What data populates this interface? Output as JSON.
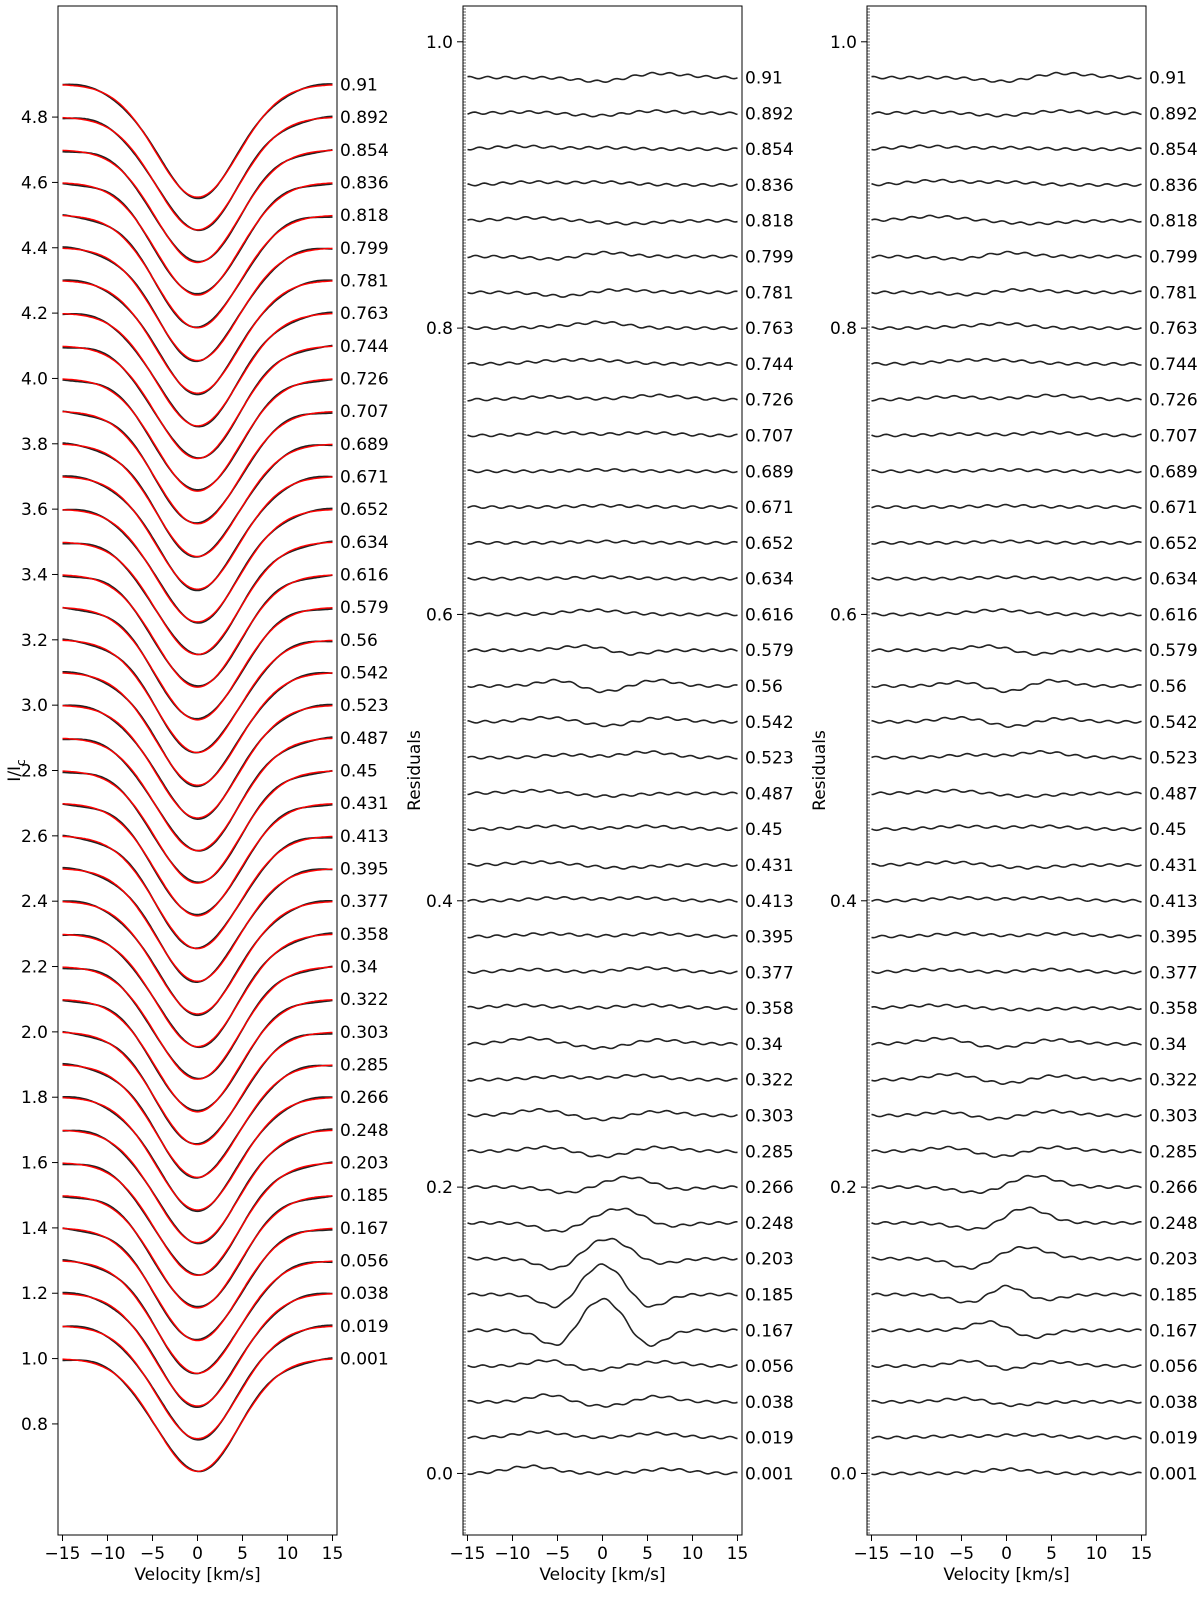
{
  "chart_data": [
    {
      "type": "line",
      "ylabel": "I/I",
      "ylabel_sub": "c",
      "xlabel": "Velocity [km/s]",
      "xlim": [
        -15.5,
        15.5
      ],
      "ylim": [
        0.46,
        5.14
      ],
      "xticks": [
        -15,
        -10,
        -5,
        0,
        5,
        10,
        15
      ],
      "xtick_labels": [
        "−15",
        "−10",
        "−5",
        "0",
        "5",
        "10",
        "15"
      ],
      "yticks": [
        0.8,
        1.0,
        1.2,
        1.4,
        1.6,
        1.8,
        2.0,
        2.2,
        2.4,
        2.6,
        2.8,
        3.0,
        3.2,
        3.4,
        3.6,
        3.8,
        4.0,
        4.2,
        4.4,
        4.6,
        4.8
      ],
      "ytick_labels": [
        "0.8",
        "1.0",
        "1.2",
        "1.4",
        "1.6",
        "1.8",
        "2.0",
        "2.2",
        "2.4",
        "2.6",
        "2.8",
        "3.0",
        "3.2",
        "3.4",
        "3.6",
        "3.8",
        "4.0",
        "4.2",
        "4.4",
        "4.6",
        "4.8"
      ],
      "offset_step": 0.1,
      "line_depth": 0.345,
      "line_sigma": 4.6,
      "series_colors": {
        "observed": "#222222",
        "model": "#ff0000"
      },
      "phase_labels": [
        "0.001",
        "0.019",
        "0.038",
        "0.056",
        "0.167",
        "0.185",
        "0.203",
        "0.248",
        "0.266",
        "0.285",
        "0.303",
        "0.322",
        "0.34",
        "0.358",
        "0.377",
        "0.395",
        "0.413",
        "0.431",
        "0.45",
        "0.487",
        "0.523",
        "0.542",
        "0.56",
        "0.579",
        "0.616",
        "0.634",
        "0.652",
        "0.671",
        "0.689",
        "0.707",
        "0.726",
        "0.744",
        "0.763",
        "0.781",
        "0.799",
        "0.818",
        "0.836",
        "0.854",
        "0.892",
        "0.91"
      ]
    },
    {
      "type": "line",
      "ylabel": "Residuals",
      "xlabel": "Velocity [km/s]",
      "xlim": [
        -15.5,
        15.5
      ],
      "ylim": [
        -0.043,
        1.025
      ],
      "xticks": [
        -15,
        -10,
        -5,
        0,
        5,
        10,
        15
      ],
      "xtick_labels": [
        "−15",
        "−10",
        "−5",
        "0",
        "5",
        "10",
        "15"
      ],
      "yticks": [
        0.0,
        0.2,
        0.4,
        0.6,
        0.8,
        1.0
      ],
      "ytick_labels": [
        "0.0",
        "0.2",
        "0.4",
        "0.6",
        "0.8",
        "1.0"
      ],
      "offset_step": 0.025,
      "series_colors": {
        "residual": "#222222"
      },
      "phase_labels": [
        "0.001",
        "0.019",
        "0.038",
        "0.056",
        "0.167",
        "0.185",
        "0.203",
        "0.248",
        "0.266",
        "0.285",
        "0.303",
        "0.322",
        "0.34",
        "0.358",
        "0.377",
        "0.395",
        "0.413",
        "0.431",
        "0.45",
        "0.487",
        "0.523",
        "0.542",
        "0.56",
        "0.579",
        "0.616",
        "0.634",
        "0.652",
        "0.671",
        "0.689",
        "0.707",
        "0.726",
        "0.744",
        "0.763",
        "0.781",
        "0.799",
        "0.818",
        "0.836",
        "0.854",
        "0.892",
        "0.91"
      ],
      "residual_features": [
        [
          [
            -8,
            0.005,
            2.5
          ],
          [
            7,
            0.003,
            2.5
          ]
        ],
        [
          [
            -7,
            0.004,
            2.5
          ],
          [
            6,
            0.003,
            2.5
          ]
        ],
        [
          [
            -6,
            0.005,
            2
          ],
          [
            0,
            -0.003,
            2.5
          ],
          [
            6,
            0.004,
            2
          ]
        ],
        [
          [
            -6,
            0.004,
            2
          ],
          [
            -1,
            -0.003,
            2
          ],
          [
            6.5,
            0.003,
            2.5
          ]
        ],
        [
          [
            -5,
            -0.012,
            1.8
          ],
          [
            0,
            0.022,
            2.3
          ],
          [
            5,
            -0.012,
            1.8
          ]
        ],
        [
          [
            -5,
            -0.01,
            1.8
          ],
          [
            0,
            0.021,
            2.3
          ],
          [
            5,
            -0.01,
            1.8
          ]
        ],
        [
          [
            -5,
            -0.008,
            2
          ],
          [
            0.5,
            0.014,
            2.5
          ],
          [
            6,
            -0.004,
            2
          ]
        ],
        [
          [
            -5,
            -0.006,
            2
          ],
          [
            2,
            0.01,
            2.5
          ],
          [
            7,
            -0.003,
            2
          ]
        ],
        [
          [
            -4,
            -0.004,
            2
          ],
          [
            3,
            0.007,
            2.5
          ],
          [
            8,
            -0.002,
            2
          ]
        ],
        [
          [
            -6,
            0.003,
            2.5
          ],
          [
            0,
            -0.004,
            2.5
          ],
          [
            6,
            0.003,
            2.5
          ]
        ],
        [
          [
            -7,
            0.004,
            2.5
          ],
          [
            0,
            -0.003,
            2.5
          ],
          [
            6,
            0.003,
            2.5
          ]
        ],
        [
          [
            -5,
            0.002,
            3
          ],
          [
            4,
            0.003,
            2.5
          ]
        ],
        [
          [
            -8,
            0.004,
            2.5
          ],
          [
            0,
            -0.003,
            2.5
          ],
          [
            6,
            0.003,
            2.5
          ]
        ],
        [
          [
            -9,
            0.002,
            3
          ],
          [
            5,
            0.002,
            3
          ]
        ],
        [
          [
            -8,
            0.002,
            3
          ],
          [
            5,
            0.003,
            3
          ]
        ],
        [
          [
            -6,
            0.002,
            3
          ],
          [
            6,
            0.002,
            3
          ]
        ],
        [
          [
            -5,
            0.002,
            3
          ],
          [
            4,
            0.002,
            3
          ]
        ],
        [
          [
            -7,
            0.002,
            3
          ],
          [
            2,
            -0.002,
            3
          ]
        ],
        [
          [
            -6,
            0.002,
            3
          ],
          [
            5,
            0.002,
            3
          ]
        ],
        [
          [
            -7,
            0.002,
            3
          ],
          [
            0,
            -0.002,
            3
          ]
        ],
        [
          [
            -4,
            0.002,
            2.5
          ],
          [
            5,
            0.004,
            2.5
          ]
        ],
        [
          [
            -6,
            0.003,
            2.5
          ],
          [
            1,
            -0.003,
            2.5
          ],
          [
            6,
            0.003,
            2.5
          ]
        ],
        [
          [
            -5,
            0.004,
            2
          ],
          [
            0,
            -0.004,
            2
          ],
          [
            6,
            0.004,
            2
          ]
        ],
        [
          [
            -2,
            0.003,
            2.5
          ],
          [
            3,
            -0.003,
            2
          ]
        ],
        [
          [
            -1,
            0.003,
            3
          ]
        ],
        [
          [
            0,
            0.001,
            3
          ]
        ],
        [
          [
            0,
            0.001,
            3
          ]
        ],
        [
          [
            0,
            0.001,
            3
          ]
        ],
        [
          [
            0,
            0.001,
            3
          ]
        ],
        [
          [
            -5,
            0.002,
            3
          ],
          [
            5,
            0.002,
            3
          ]
        ],
        [
          [
            -6,
            0.002,
            3
          ],
          [
            6,
            0.003,
            3
          ]
        ],
        [
          [
            -5,
            0.002,
            3
          ],
          [
            0,
            0.002,
            3
          ]
        ],
        [
          [
            -5,
            0.001,
            2.5
          ],
          [
            0,
            0.004,
            2.5
          ]
        ],
        [
          [
            -4,
            -0.003,
            2.5
          ],
          [
            1,
            0.002,
            3
          ]
        ],
        [
          [
            -5,
            -0.002,
            2.5
          ],
          [
            0,
            0.003,
            2.5
          ]
        ],
        [
          [
            -8,
            0.002,
            3
          ],
          [
            3,
            -0.002,
            3
          ]
        ],
        [
          [
            -8,
            0.002,
            3
          ],
          [
            0,
            0.002,
            3
          ]
        ],
        [
          [
            -9,
            0.002,
            3
          ],
          [
            0,
            0.001,
            3
          ]
        ],
        [
          [
            -8,
            0.001,
            3
          ],
          [
            0,
            -0.002,
            3
          ],
          [
            5,
            0.002,
            3
          ]
        ],
        [
          [
            0,
            -0.003,
            2.5
          ],
          [
            6,
            0.003,
            3
          ]
        ]
      ]
    },
    {
      "type": "line",
      "ylabel": "Residuals",
      "xlabel": "Velocity [km/s]",
      "xlim": [
        -15.5,
        15.5
      ],
      "ylim": [
        -0.043,
        1.025
      ],
      "xticks": [
        -15,
        -10,
        -5,
        0,
        5,
        10,
        15
      ],
      "xtick_labels": [
        "−15",
        "−10",
        "−5",
        "0",
        "5",
        "10",
        "15"
      ],
      "yticks": [
        0.0,
        0.2,
        0.4,
        0.6,
        0.8,
        1.0
      ],
      "ytick_labels": [
        "0.0",
        "0.2",
        "0.4",
        "0.6",
        "0.8",
        "1.0"
      ],
      "offset_step": 0.025,
      "series_colors": {
        "residual": "#222222"
      },
      "phase_labels": [
        "0.001",
        "0.019",
        "0.038",
        "0.056",
        "0.167",
        "0.185",
        "0.203",
        "0.248",
        "0.266",
        "0.285",
        "0.303",
        "0.322",
        "0.34",
        "0.358",
        "0.377",
        "0.395",
        "0.413",
        "0.431",
        "0.45",
        "0.487",
        "0.523",
        "0.542",
        "0.56",
        "0.579",
        "0.616",
        "0.634",
        "0.652",
        "0.671",
        "0.689",
        "0.707",
        "0.726",
        "0.744",
        "0.763",
        "0.781",
        "0.799",
        "0.818",
        "0.836",
        "0.854",
        "0.892",
        "0.91"
      ],
      "residual_features": [
        [
          [
            0,
            0.003,
            2.5
          ]
        ],
        [
          [
            -6,
            0.001,
            3
          ],
          [
            2,
            0.002,
            3
          ]
        ],
        [
          [
            -4,
            0.003,
            2.5
          ],
          [
            0,
            -0.003,
            2.5
          ]
        ],
        [
          [
            -4,
            0.004,
            2
          ],
          [
            0,
            -0.003,
            2
          ],
          [
            5,
            0.003,
            2.5
          ]
        ],
        [
          [
            -2,
            0.006,
            1.8
          ],
          [
            3,
            -0.005,
            1.8
          ]
        ],
        [
          [
            -4,
            -0.006,
            2
          ],
          [
            0,
            0.007,
            1.8
          ],
          [
            4,
            -0.004,
            2
          ]
        ],
        [
          [
            -4,
            -0.007,
            2
          ],
          [
            2,
            0.008,
            2.5
          ]
        ],
        [
          [
            -3,
            -0.005,
            2.5
          ],
          [
            2,
            0.011,
            2.3
          ]
        ],
        [
          [
            -3,
            -0.004,
            2.5
          ],
          [
            3,
            0.008,
            2.5
          ]
        ],
        [
          [
            -6,
            0.003,
            2.5
          ],
          [
            -1,
            -0.004,
            2.5
          ],
          [
            5,
            0.003,
            2.5
          ]
        ],
        [
          [
            -6,
            0.003,
            2.5
          ],
          [
            -2,
            -0.003,
            2.5
          ],
          [
            5,
            0.003,
            2.5
          ]
        ],
        [
          [
            -6,
            0.004,
            2.5
          ],
          [
            0,
            -0.003,
            2.5
          ],
          [
            5,
            0.003,
            2.5
          ]
        ],
        [
          [
            -7,
            0.004,
            2.5
          ],
          [
            -1,
            -0.003,
            2.5
          ],
          [
            5,
            0.003,
            2.5
          ]
        ],
        [
          [
            -8,
            0.002,
            3
          ],
          [
            2,
            -0.001,
            3
          ]
        ],
        [
          [
            -8,
            0.002,
            3
          ],
          [
            5,
            0.002,
            3
          ]
        ],
        [
          [
            -5,
            0.002,
            3
          ],
          [
            6,
            0.002,
            3
          ]
        ],
        [
          [
            -5,
            0.002,
            3
          ],
          [
            4,
            0.002,
            3
          ]
        ],
        [
          [
            -6,
            0.002,
            3
          ],
          [
            2,
            -0.002,
            3
          ]
        ],
        [
          [
            -5,
            0.002,
            3
          ],
          [
            4,
            0.002,
            3
          ]
        ],
        [
          [
            -6,
            0.002,
            3
          ],
          [
            2,
            -0.002,
            3
          ]
        ],
        [
          [
            -4,
            0.002,
            2.5
          ],
          [
            4,
            0.004,
            2.5
          ]
        ],
        [
          [
            -5,
            0.003,
            2.5
          ],
          [
            1,
            -0.004,
            2.5
          ],
          [
            5,
            0.003,
            2.5
          ]
        ],
        [
          [
            -5,
            0.003,
            2
          ],
          [
            0,
            -0.004,
            2
          ],
          [
            5,
            0.004,
            2
          ]
        ],
        [
          [
            -2,
            0.003,
            2.5
          ],
          [
            3,
            -0.003,
            2
          ]
        ],
        [
          [
            -1,
            0.003,
            3
          ]
        ],
        [
          [
            0,
            0.001,
            3
          ]
        ],
        [
          [
            0,
            0.001,
            3
          ]
        ],
        [
          [
            0,
            0.001,
            3
          ]
        ],
        [
          [
            0,
            0.001,
            3
          ]
        ],
        [
          [
            -5,
            0.001,
            3
          ],
          [
            5,
            0.002,
            3
          ]
        ],
        [
          [
            -6,
            0.002,
            3
          ],
          [
            5,
            0.003,
            3
          ]
        ],
        [
          [
            -5,
            0.002,
            3
          ],
          [
            0,
            0.002,
            3
          ]
        ],
        [
          [
            -5,
            0.001,
            2.5
          ],
          [
            0,
            0.003,
            2.5
          ]
        ],
        [
          [
            -4,
            -0.002,
            2.5
          ],
          [
            1,
            0.002,
            3
          ]
        ],
        [
          [
            -5,
            -0.002,
            2.5
          ],
          [
            0,
            0.003,
            2.5
          ]
        ],
        [
          [
            -8,
            0.003,
            3
          ],
          [
            3,
            -0.002,
            3
          ]
        ],
        [
          [
            -8,
            0.003,
            3
          ],
          [
            0,
            0.002,
            3
          ]
        ],
        [
          [
            -9,
            0.002,
            3
          ],
          [
            0,
            0.001,
            3
          ]
        ],
        [
          [
            -8,
            0.001,
            3
          ],
          [
            0,
            -0.002,
            3
          ],
          [
            5,
            0.002,
            3
          ]
        ],
        [
          [
            0,
            -0.003,
            2.5
          ],
          [
            6,
            0.003,
            3
          ]
        ]
      ]
    }
  ]
}
